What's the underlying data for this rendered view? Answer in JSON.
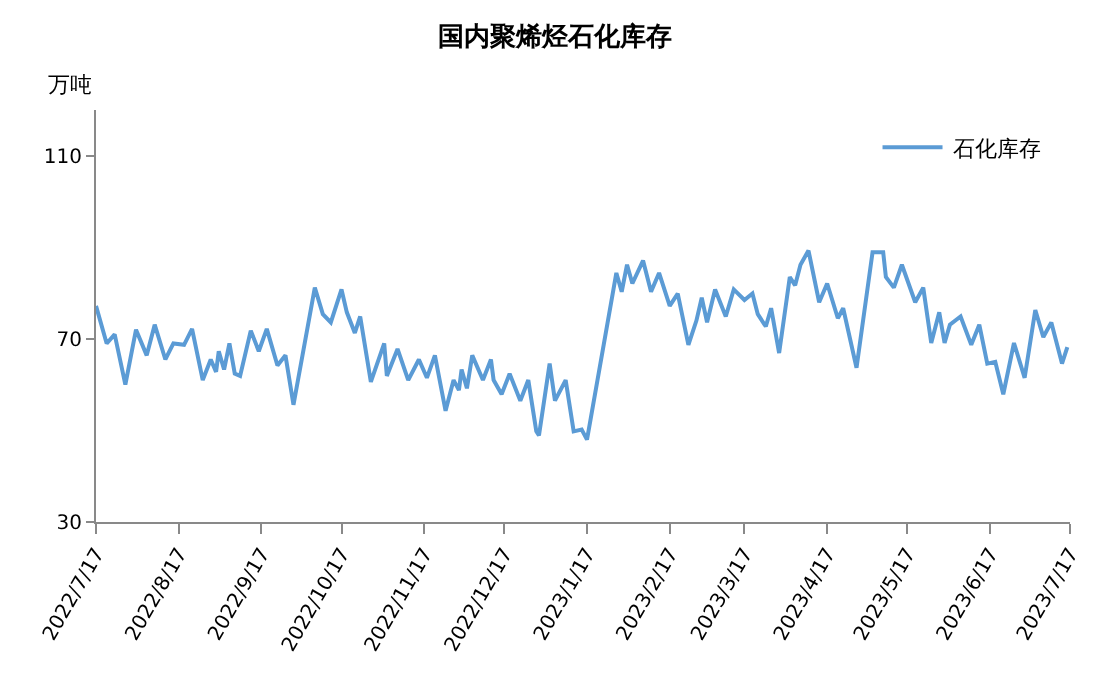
{
  "chart_data": {
    "type": "line",
    "title": "国内聚烯烃石化库存",
    "ylabel": "万吨",
    "x": [
      "2022-07-17",
      "2022-07-21",
      "2022-07-24",
      "2022-07-28",
      "2022-08-01",
      "2022-08-05",
      "2022-08-08",
      "2022-08-12",
      "2022-08-15",
      "2022-08-19",
      "2022-08-22",
      "2022-08-26",
      "2022-08-29",
      "2022-08-31",
      "2022-09-01",
      "2022-09-03",
      "2022-09-05",
      "2022-09-07",
      "2022-09-09",
      "2022-09-13",
      "2022-09-16",
      "2022-09-19",
      "2022-09-23",
      "2022-09-26",
      "2022-09-29",
      "2022-10-07",
      "2022-10-10",
      "2022-10-13",
      "2022-10-17",
      "2022-10-19",
      "2022-10-22",
      "2022-10-24",
      "2022-10-28",
      "2022-11-02",
      "2022-11-03",
      "2022-11-07",
      "2022-11-11",
      "2022-11-15",
      "2022-11-18",
      "2022-11-21",
      "2022-11-25",
      "2022-11-28",
      "2022-11-30",
      "2022-12-01",
      "2022-12-03",
      "2022-12-05",
      "2022-12-09",
      "2022-12-12",
      "2022-12-13",
      "2022-12-16",
      "2022-12-19",
      "2022-12-23",
      "2022-12-26",
      "2022-12-29",
      "2022-12-30",
      "2023-01-03",
      "2023-01-05",
      "2023-01-09",
      "2023-01-12",
      "2023-01-15",
      "2023-01-17",
      "2023-01-28",
      "2023-01-30",
      "2023-02-01",
      "2023-02-03",
      "2023-02-07",
      "2023-02-10",
      "2023-02-13",
      "2023-02-17",
      "2023-02-20",
      "2023-02-24",
      "2023-02-27",
      "2023-03-01",
      "2023-03-03",
      "2023-03-06",
      "2023-03-10",
      "2023-03-13",
      "2023-03-17",
      "2023-03-20",
      "2023-03-22",
      "2023-03-25",
      "2023-03-27",
      "2023-03-30",
      "2023-04-03",
      "2023-04-05",
      "2023-04-07",
      "2023-04-10",
      "2023-04-14",
      "2023-04-17",
      "2023-04-21",
      "2023-04-23",
      "2023-04-28",
      "2023-05-04",
      "2023-05-08",
      "2023-05-09",
      "2023-05-12",
      "2023-05-15",
      "2023-05-20",
      "2023-05-23",
      "2023-05-26",
      "2023-05-29",
      "2023-05-31",
      "2023-06-02",
      "2023-06-06",
      "2023-06-10",
      "2023-06-13",
      "2023-06-16",
      "2023-06-19",
      "2023-06-22",
      "2023-06-26",
      "2023-06-30",
      "2023-07-04",
      "2023-07-07",
      "2023-07-10",
      "2023-07-14",
      "2023-07-16"
    ],
    "series": [
      {
        "name": "石化库存",
        "color": "#5b9bd5",
        "values": [
          77.2,
          69,
          71,
          60,
          72,
          66.4,
          73.1,
          65.5,
          69,
          68.7,
          72.2,
          61,
          65.5,
          62.8,
          67.3,
          63.3,
          69,
          62.4,
          61.9,
          71.8,
          67.3,
          72.2,
          64.2,
          66.4,
          55.6,
          81.2,
          75.4,
          73.6,
          80.8,
          75.8,
          71.3,
          74.9,
          60.6,
          69,
          61.9,
          67.8,
          61,
          65.5,
          61.5,
          66.4,
          54.3,
          61,
          58.8,
          63.3,
          59.2,
          66.4,
          61,
          65.5,
          61,
          57.9,
          62.4,
          56.5,
          61,
          49.8,
          48.9,
          64.6,
          56.5,
          61,
          49.8,
          50.2,
          48,
          84.4,
          80.3,
          86.2,
          82.1,
          87.1,
          80.3,
          84.4,
          77.2,
          79.9,
          68.7,
          74,
          79,
          73.6,
          80.8,
          74.9,
          80.8,
          78.5,
          79.9,
          75.4,
          72.7,
          76.7,
          66.9,
          83.5,
          81.7,
          86.2,
          89.3,
          78,
          82.1,
          74.5,
          76.7,
          63.7,
          88.9,
          88.9,
          83.5,
          81.2,
          86.2,
          78,
          81.2,
          69.1,
          75.8,
          69.1,
          73.1,
          74.9,
          68.7,
          73.1,
          64.6,
          65,
          57.9,
          69.1,
          61.5,
          76.3,
          70.4,
          73.6,
          64.6,
          68.2
        ]
      }
    ],
    "xlim": [
      "2022-07-17",
      "2023-07-17"
    ],
    "xticks": [
      {
        "value": "2022-07-17",
        "label": "2022/7/17"
      },
      {
        "value": "2022-08-17",
        "label": "2022/8/17"
      },
      {
        "value": "2022-09-17",
        "label": "2022/9/17"
      },
      {
        "value": "2022-10-17",
        "label": "2022/10/17"
      },
      {
        "value": "2022-11-17",
        "label": "2022/11/17"
      },
      {
        "value": "2022-12-17",
        "label": "2022/12/17"
      },
      {
        "value": "2023-01-17",
        "label": "2023/1/17"
      },
      {
        "value": "2023-02-17",
        "label": "2023/2/17"
      },
      {
        "value": "2023-03-17",
        "label": "2023/3/17"
      },
      {
        "value": "2023-04-17",
        "label": "2023/4/17"
      },
      {
        "value": "2023-05-17",
        "label": "2023/5/17"
      },
      {
        "value": "2023-06-17",
        "label": "2023/6/17"
      },
      {
        "value": "2023-07-17",
        "label": "2023/7/17"
      }
    ],
    "ylim": [
      30,
      120
    ],
    "yticks": [
      30,
      70,
      110
    ],
    "legend": "top right",
    "marker": "none",
    "line_style": "solid"
  }
}
